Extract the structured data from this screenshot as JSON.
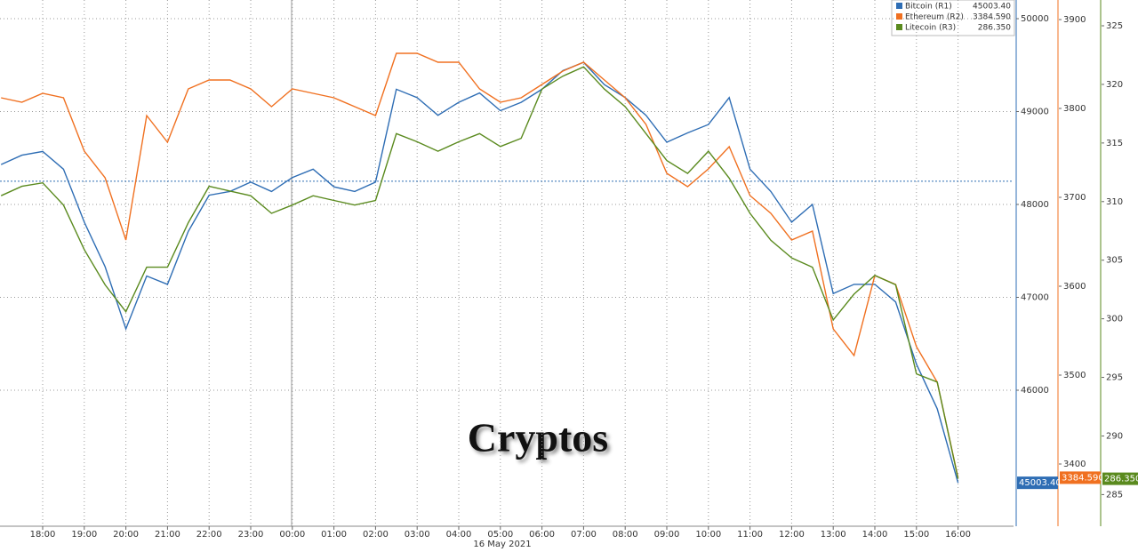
{
  "chart_data": {
    "type": "line",
    "title": "Cryptos",
    "date_label": "16 May 2021",
    "categories": [
      null,
      null,
      "18:00",
      null,
      "19:00",
      null,
      "20:00",
      null,
      "21:00",
      null,
      "22:00",
      null,
      "23:00",
      null,
      "00:00",
      null,
      "01:00",
      null,
      "02:00",
      null,
      "03:00",
      null,
      "04:00",
      null,
      "05:00",
      null,
      "06:00",
      null,
      "07:00",
      null,
      "08:00",
      null,
      "09:00",
      null,
      "10:00",
      null,
      "11:00",
      null,
      "12:00",
      null,
      "13:00",
      null,
      "14:00",
      null,
      "15:00",
      null,
      "16:00"
    ],
    "ylim": [
      44536,
      50201
    ],
    "yticks": [
      46000,
      47000,
      48000,
      49000,
      50000
    ],
    "y2lim": [
      3330,
      3922
    ],
    "y2ticks": [
      3400,
      3500,
      3600,
      3700,
      3800,
      3900
    ],
    "y3lim": [
      282.3,
      327.2
    ],
    "y3ticks": [
      285,
      290,
      295,
      300,
      305,
      310,
      315,
      320,
      325
    ],
    "hline": 48250,
    "grid": true,
    "series": [
      {
        "name": "Bitcoin (R1)",
        "color": "#2e6db4",
        "axis": "y",
        "last_label": "45003.40",
        "values": [
          48430,
          48530,
          48570,
          48380,
          47810,
          47330,
          46660,
          47230,
          47140,
          47710,
          48100,
          48140,
          48240,
          48140,
          48290,
          48380,
          48190,
          48140,
          48240,
          49240,
          49150,
          48960,
          49100,
          49200,
          49010,
          49100,
          49240,
          49440,
          49530,
          49290,
          49150,
          48960,
          48670,
          48770,
          48860,
          49150,
          48380,
          48140,
          47810,
          48000,
          47040,
          47140,
          47140,
          46950,
          46280,
          45800,
          45003.4
        ]
      },
      {
        "name": "Ethereum (R2)",
        "color": "#f07020",
        "axis": "y2",
        "last_label": "3384.590",
        "values": [
          3812,
          3807,
          3817,
          3812,
          3752,
          3722,
          3652,
          3792,
          3762,
          3822,
          3832,
          3832,
          3822,
          3802,
          3822,
          3817,
          3812,
          3802,
          3792,
          3862,
          3862,
          3852,
          3852,
          3822,
          3807,
          3812,
          3827,
          3842,
          3852,
          3832,
          3812,
          3782,
          3727,
          3712,
          3732,
          3757,
          3702,
          3682,
          3652,
          3662,
          3552,
          3522,
          3612,
          3602,
          3532,
          3492,
          3384.59
        ]
      },
      {
        "name": "Litecoin (R3)",
        "color": "#5a8a1e",
        "axis": "y3",
        "last_label": "286.350",
        "values": [
          310.5,
          311.3,
          311.6,
          309.7,
          305.9,
          302.9,
          300.6,
          304.4,
          304.4,
          308.2,
          311.3,
          310.9,
          310.5,
          309.0,
          309.7,
          310.5,
          310.1,
          309.7,
          310.1,
          315.8,
          315.1,
          314.3,
          315.1,
          315.8,
          314.7,
          315.4,
          319.6,
          320.7,
          321.5,
          319.6,
          318.1,
          315.8,
          313.5,
          312.4,
          314.3,
          312.0,
          309.0,
          306.7,
          305.2,
          304.4,
          299.9,
          302.1,
          303.7,
          302.9,
          295.3,
          294.6,
          286.35
        ]
      }
    ]
  }
}
